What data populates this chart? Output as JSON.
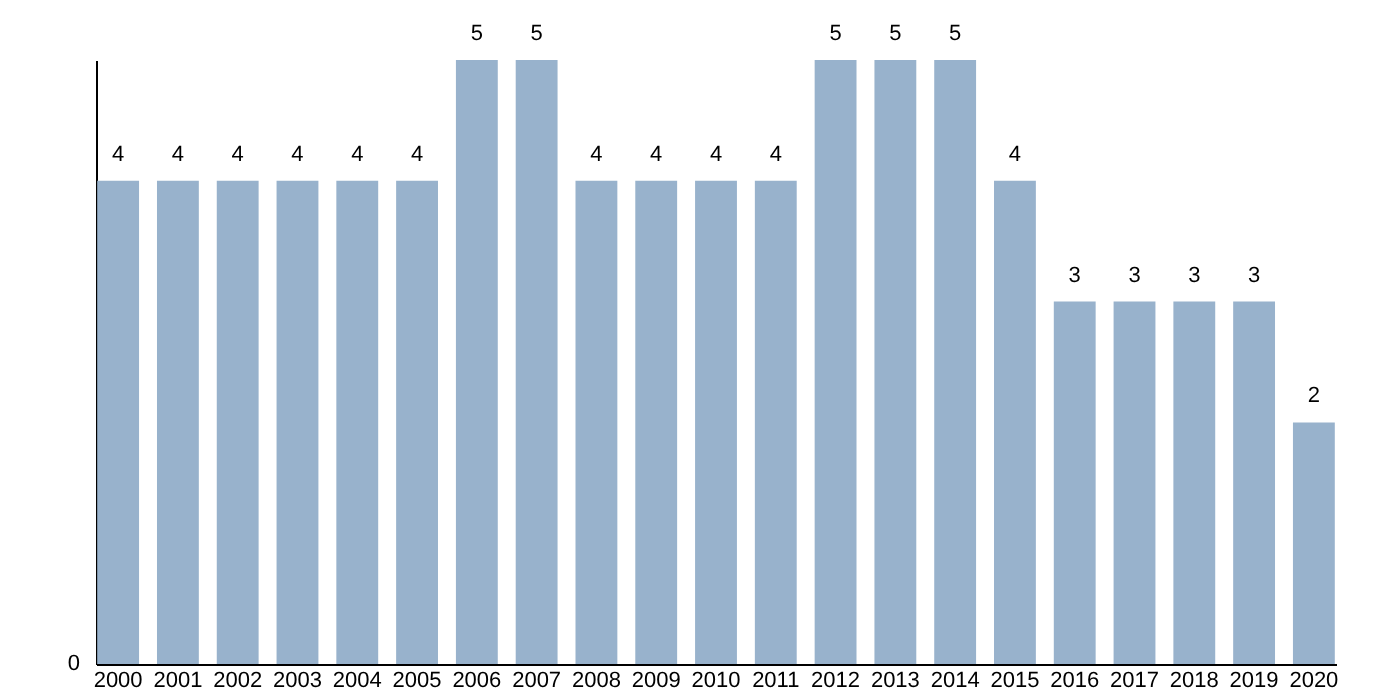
{
  "chart_data": {
    "type": "bar",
    "categories": [
      "2000",
      "2001",
      "2002",
      "2003",
      "2004",
      "2005",
      "2006",
      "2007",
      "2008",
      "2009",
      "2010",
      "2011",
      "2012",
      "2013",
      "2014",
      "2015",
      "2016",
      "2017",
      "2018",
      "2019",
      "2020"
    ],
    "values": [
      4,
      4,
      4,
      4,
      4,
      4,
      5,
      5,
      4,
      4,
      4,
      4,
      5,
      5,
      5,
      4,
      3,
      3,
      3,
      3,
      2
    ],
    "color": "#98b2cc",
    "data_labels": true,
    "annotations": [
      "0"
    ]
  }
}
